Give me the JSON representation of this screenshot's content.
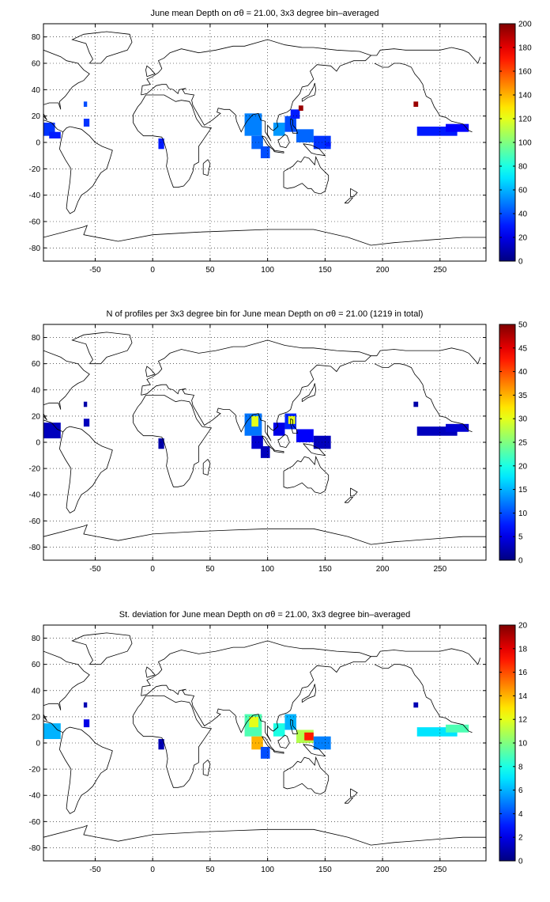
{
  "chart_data": [
    {
      "type": "heatmap",
      "title": "June mean Depth on σθ = 21.00, 3x3 degree bin–averaged",
      "x_ticks": [
        -50,
        0,
        50,
        100,
        150,
        200,
        250
      ],
      "y_ticks": [
        -80,
        -60,
        -40,
        -20,
        0,
        20,
        40,
        60,
        80
      ],
      "xlim": [
        -95,
        290
      ],
      "ylim": [
        -90,
        90
      ],
      "colorbar": {
        "min": 0,
        "max": 200,
        "ticks": [
          0,
          20,
          40,
          60,
          80,
          100,
          120,
          140,
          160,
          180,
          200
        ]
      },
      "grid": true,
      "colormap": "jet",
      "regions": [
        {
          "x": [
            -95,
            -85
          ],
          "y": [
            5,
            15
          ],
          "value": 35
        },
        {
          "x": [
            -90,
            -80
          ],
          "y": [
            3,
            8
          ],
          "value": 30
        },
        {
          "x": [
            -60,
            -55
          ],
          "y": [
            12,
            18
          ],
          "value": 35
        },
        {
          "x": [
            -60,
            -57
          ],
          "y": [
            27,
            31
          ],
          "value": 40
        },
        {
          "x": [
            5,
            10
          ],
          "y": [
            -5,
            3
          ],
          "value": 30
        },
        {
          "x": [
            80,
            95
          ],
          "y": [
            5,
            22
          ],
          "value": 50
        },
        {
          "x": [
            86,
            96
          ],
          "y": [
            -5,
            5
          ],
          "value": 45
        },
        {
          "x": [
            94,
            102
          ],
          "y": [
            -12,
            -3
          ],
          "value": 40
        },
        {
          "x": [
            105,
            115
          ],
          "y": [
            5,
            15
          ],
          "value": 55
        },
        {
          "x": [
            115,
            125
          ],
          "y": [
            8,
            20
          ],
          "value": 40
        },
        {
          "x": [
            120,
            128
          ],
          "y": [
            18,
            25
          ],
          "value": 30
        },
        {
          "x": [
            125,
            140
          ],
          "y": [
            0,
            10
          ],
          "value": 45
        },
        {
          "x": [
            140,
            155
          ],
          "y": [
            -5,
            5
          ],
          "value": 35
        },
        {
          "x": [
            150,
            155
          ],
          "y": [
            -3,
            0
          ],
          "value": 30
        },
        {
          "x": [
            127,
            131
          ],
          "y": [
            24,
            28
          ],
          "value": 195
        },
        {
          "x": [
            227,
            231
          ],
          "y": [
            27,
            31
          ],
          "value": 195
        },
        {
          "x": [
            230,
            265
          ],
          "y": [
            5,
            12
          ],
          "value": 30
        },
        {
          "x": [
            255,
            275
          ],
          "y": [
            8,
            14
          ],
          "value": 25
        }
      ]
    },
    {
      "type": "heatmap",
      "title": "N of profiles per 3x3 degree bin for June mean Depth on σθ = 21.00 (1219 in total)",
      "x_ticks": [
        -50,
        0,
        50,
        100,
        150,
        200,
        250
      ],
      "y_ticks": [
        -80,
        -60,
        -40,
        -20,
        0,
        20,
        40,
        60,
        80
      ],
      "xlim": [
        -95,
        290
      ],
      "ylim": [
        -90,
        90
      ],
      "colorbar": {
        "min": 0,
        "max": 50,
        "ticks": [
          0,
          5,
          10,
          15,
          20,
          25,
          30,
          35,
          40,
          45,
          50
        ]
      },
      "grid": true,
      "colormap": "jet",
      "regions": [
        {
          "x": [
            -95,
            -80
          ],
          "y": [
            3,
            15
          ],
          "value": 3
        },
        {
          "x": [
            -60,
            -55
          ],
          "y": [
            12,
            18
          ],
          "value": 3
        },
        {
          "x": [
            -60,
            -57
          ],
          "y": [
            27,
            31
          ],
          "value": 2
        },
        {
          "x": [
            5,
            10
          ],
          "y": [
            -5,
            3
          ],
          "value": 2
        },
        {
          "x": [
            80,
            95
          ],
          "y": [
            5,
            22
          ],
          "value": 12
        },
        {
          "x": [
            86,
            92
          ],
          "y": [
            12,
            20
          ],
          "value": 30
        },
        {
          "x": [
            86,
            96
          ],
          "y": [
            -5,
            5
          ],
          "value": 4
        },
        {
          "x": [
            94,
            102
          ],
          "y": [
            -12,
            -3
          ],
          "value": 3
        },
        {
          "x": [
            105,
            115
          ],
          "y": [
            5,
            15
          ],
          "value": 5
        },
        {
          "x": [
            115,
            125
          ],
          "y": [
            10,
            22
          ],
          "value": 8
        },
        {
          "x": [
            118,
            124
          ],
          "y": [
            14,
            20
          ],
          "value": 30
        },
        {
          "x": [
            125,
            140
          ],
          "y": [
            0,
            10
          ],
          "value": 6
        },
        {
          "x": [
            140,
            155
          ],
          "y": [
            -5,
            5
          ],
          "value": 3
        },
        {
          "x": [
            230,
            265
          ],
          "y": [
            5,
            12
          ],
          "value": 3
        },
        {
          "x": [
            255,
            275
          ],
          "y": [
            8,
            14
          ],
          "value": 4
        },
        {
          "x": [
            227,
            231
          ],
          "y": [
            27,
            31
          ],
          "value": 2
        }
      ]
    },
    {
      "type": "heatmap",
      "title": "St. deviation for June mean Depth on σθ = 21.00, 3x3 degree bin–averaged",
      "x_ticks": [
        -50,
        0,
        50,
        100,
        150,
        200,
        250
      ],
      "y_ticks": [
        -80,
        -60,
        -40,
        -20,
        0,
        20,
        40,
        60,
        80
      ],
      "xlim": [
        -95,
        290
      ],
      "ylim": [
        -90,
        90
      ],
      "colorbar": {
        "min": 0,
        "max": 20,
        "ticks": [
          0,
          2,
          4,
          6,
          8,
          10,
          12,
          14,
          16,
          18,
          20
        ]
      },
      "grid": true,
      "colormap": "jet",
      "regions": [
        {
          "x": [
            -95,
            -80
          ],
          "y": [
            3,
            15
          ],
          "value": 6
        },
        {
          "x": [
            -60,
            -55
          ],
          "y": [
            12,
            18
          ],
          "value": 2
        },
        {
          "x": [
            -60,
            -57
          ],
          "y": [
            27,
            31
          ],
          "value": 1
        },
        {
          "x": [
            5,
            10
          ],
          "y": [
            -5,
            3
          ],
          "value": 1
        },
        {
          "x": [
            80,
            95
          ],
          "y": [
            5,
            22
          ],
          "value": 9
        },
        {
          "x": [
            84,
            92
          ],
          "y": [
            12,
            20
          ],
          "value": 12
        },
        {
          "x": [
            86,
            96
          ],
          "y": [
            -5,
            5
          ],
          "value": 14
        },
        {
          "x": [
            94,
            102
          ],
          "y": [
            -12,
            -3
          ],
          "value": 4
        },
        {
          "x": [
            105,
            115
          ],
          "y": [
            5,
            15
          ],
          "value": 8
        },
        {
          "x": [
            115,
            125
          ],
          "y": [
            10,
            22
          ],
          "value": 6
        },
        {
          "x": [
            125,
            140
          ],
          "y": [
            0,
            10
          ],
          "value": 11
        },
        {
          "x": [
            132,
            140
          ],
          "y": [
            2,
            8
          ],
          "value": 17
        },
        {
          "x": [
            140,
            155
          ],
          "y": [
            -5,
            5
          ],
          "value": 5
        },
        {
          "x": [
            230,
            265
          ],
          "y": [
            5,
            12
          ],
          "value": 7
        },
        {
          "x": [
            255,
            275
          ],
          "y": [
            8,
            14
          ],
          "value": 9
        },
        {
          "x": [
            227,
            231
          ],
          "y": [
            27,
            31
          ],
          "value": 1
        }
      ]
    }
  ]
}
